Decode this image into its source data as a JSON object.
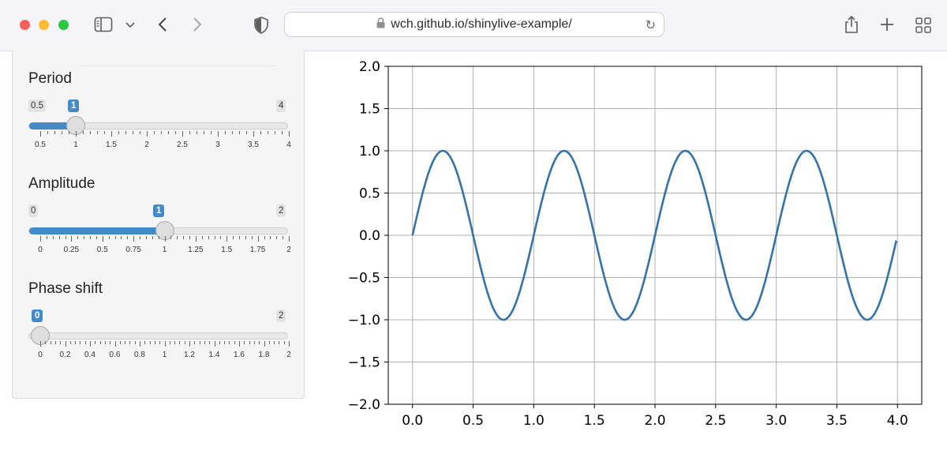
{
  "browser": {
    "url": "wch.github.io/shinylive-example/",
    "icons": {
      "sidebar_toggle": "sidebar-icon",
      "dropdown": "chevron-down-icon",
      "back": "chevron-left-icon",
      "forward": "chevron-right-icon",
      "privacy": "shield-icon",
      "lock": "lock-icon",
      "reload": "reload-icon",
      "share": "share-icon",
      "new_tab": "plus-icon",
      "tab_overview": "grid-icon"
    },
    "colors": {
      "close": "#ff5f57",
      "minimize": "#febc2e",
      "zoom": "#28c840"
    }
  },
  "sidebar": {
    "sliders": [
      {
        "label": "Period",
        "min_label": "0.5",
        "max_label": "4",
        "value_label": "1",
        "min": 0.5,
        "max": 4,
        "value": 1,
        "ticks": [
          "0.5",
          "1",
          "1.5",
          "2",
          "2.5",
          "3",
          "3.5",
          "4"
        ]
      },
      {
        "label": "Amplitude",
        "min_label": "0",
        "max_label": "2",
        "value_label": "1",
        "min": 0,
        "max": 2,
        "value": 1,
        "ticks": [
          "0",
          "0.25",
          "0.5",
          "0.75",
          "1",
          "1.25",
          "1.5",
          "1.75",
          "2"
        ]
      },
      {
        "label": "Phase shift",
        "min_label": "0",
        "max_label": "2",
        "value_label": "0",
        "min": 0,
        "max": 2,
        "value": 0,
        "ticks": [
          "0",
          "0.2",
          "0.4",
          "0.6",
          "0.8",
          "1",
          "1.2",
          "1.4",
          "1.6",
          "1.8",
          "2"
        ]
      }
    ],
    "accent_color": "#428bca"
  },
  "chart_data": {
    "type": "line",
    "title": "",
    "xlabel": "",
    "ylabel": "",
    "xlim": [
      -0.2,
      4.2
    ],
    "ylim": [
      -2.0,
      2.0
    ],
    "xticks": [
      "0.0",
      "0.5",
      "1.0",
      "1.5",
      "2.0",
      "2.5",
      "3.0",
      "3.5",
      "4.0"
    ],
    "yticks": [
      "2.0",
      "1.5",
      "1.0",
      "0.5",
      "0.0",
      "−0.5",
      "−1.0",
      "−1.5",
      "−2.0"
    ],
    "grid": true,
    "series": [
      {
        "function": "sin(2*pi*x/period + phase) * amplitude",
        "x_start": 0.0,
        "x_end": 3.99,
        "color": "#3572a8"
      }
    ]
  }
}
